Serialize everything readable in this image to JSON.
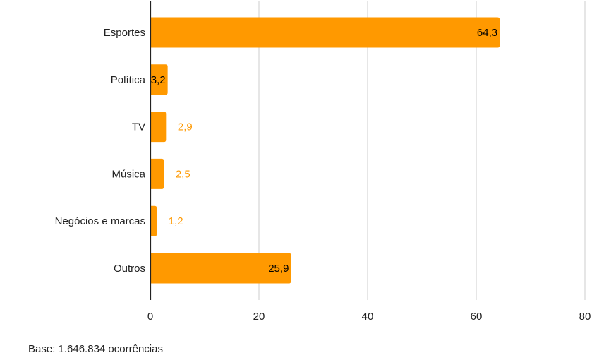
{
  "colors": {
    "bar": "#ff9900",
    "label_inside": "#000000",
    "label_outside": "#ff9900",
    "grid": "#cccccc",
    "axis": "#222222",
    "text": "#222222"
  },
  "chart_data": {
    "type": "bar",
    "orientation": "horizontal",
    "title": "",
    "xlabel": "",
    "ylabel": "",
    "categories": [
      "Esportes",
      "Política",
      "TV",
      "Música",
      "Negócios e marcas",
      "Outros"
    ],
    "values": [
      64.3,
      3.2,
      2.9,
      2.5,
      1.2,
      25.9
    ],
    "value_labels": [
      "64,3",
      "3,2",
      "2,9",
      "2,5",
      "1,2",
      "25,9"
    ],
    "label_position": [
      "inside",
      "inside",
      "outside",
      "outside",
      "outside",
      "inside"
    ],
    "xlim": [
      0,
      80
    ],
    "xticks": [
      0,
      20,
      40,
      60,
      80
    ],
    "xtick_labels": [
      "0",
      "20",
      "40",
      "60",
      "80"
    ],
    "grid": true,
    "legend": "none"
  },
  "footer": {
    "base_note": "Base: 1.646.834 ocorrências"
  }
}
